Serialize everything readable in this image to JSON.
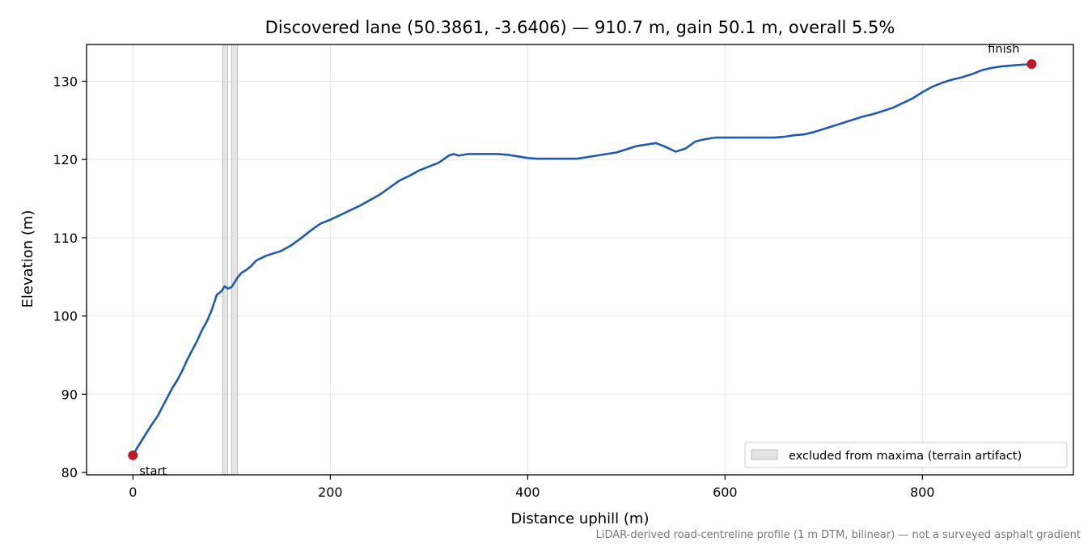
{
  "chart_data": {
    "type": "line",
    "title": "Discovered lane (50.3861, -3.6406) — 910.7 m, gain 50.1 m, overall 5.5%",
    "xlabel": "Distance uphill (m)",
    "ylabel": "Elevation (m)",
    "xlim": [
      -47,
      953
    ],
    "ylim": [
      79.7,
      134.7
    ],
    "xticks": [
      0,
      200,
      400,
      600,
      800
    ],
    "yticks": [
      80,
      90,
      100,
      110,
      120,
      130
    ],
    "grid": true,
    "series": [
      {
        "color": "#1f5bb0",
        "x": [
          0,
          5,
          10,
          15,
          20,
          25,
          30,
          35,
          40,
          45,
          50,
          55,
          60,
          65,
          70,
          75,
          80,
          85,
          90,
          93,
          96,
          100,
          103,
          106,
          110,
          115,
          120,
          125,
          130,
          135,
          140,
          145,
          150,
          160,
          170,
          180,
          190,
          200,
          210,
          220,
          230,
          240,
          250,
          260,
          270,
          280,
          290,
          300,
          310,
          320,
          325,
          330,
          340,
          350,
          360,
          370,
          380,
          390,
          400,
          410,
          420,
          430,
          440,
          450,
          460,
          470,
          480,
          490,
          500,
          510,
          520,
          530,
          540,
          550,
          560,
          570,
          580,
          590,
          600,
          610,
          620,
          630,
          640,
          650,
          660,
          670,
          680,
          690,
          700,
          710,
          720,
          730,
          740,
          750,
          760,
          770,
          780,
          790,
          800,
          810,
          820,
          830,
          840,
          850,
          860,
          870,
          880,
          890,
          900,
          910.7
        ],
        "y": [
          82.2,
          83.3,
          84.3,
          85.3,
          86.3,
          87.2,
          88.4,
          89.6,
          90.8,
          91.8,
          93.0,
          94.4,
          95.6,
          96.8,
          98.2,
          99.3,
          100.8,
          102.7,
          103.2,
          103.8,
          103.5,
          103.7,
          104.3,
          104.9,
          105.5,
          105.9,
          106.4,
          107.1,
          107.4,
          107.7,
          107.9,
          108.1,
          108.3,
          109.0,
          109.9,
          110.9,
          111.8,
          112.3,
          112.9,
          113.5,
          114.1,
          114.8,
          115.5,
          116.4,
          117.3,
          117.9,
          118.6,
          119.1,
          119.6,
          120.5,
          120.7,
          120.5,
          120.7,
          120.7,
          120.7,
          120.7,
          120.6,
          120.4,
          120.2,
          120.1,
          120.1,
          120.1,
          120.1,
          120.1,
          120.3,
          120.5,
          120.7,
          120.9,
          121.3,
          121.7,
          121.9,
          122.1,
          121.6,
          121.0,
          121.4,
          122.3,
          122.6,
          122.8,
          122.8,
          122.8,
          122.8,
          122.8,
          122.8,
          122.8,
          122.9,
          123.1,
          123.2,
          123.5,
          123.9,
          124.3,
          124.7,
          125.1,
          125.5,
          125.8,
          126.2,
          126.6,
          127.2,
          127.8,
          128.6,
          129.3,
          129.8,
          130.2,
          130.5,
          130.9,
          131.4,
          131.7,
          131.9,
          132.0,
          132.1,
          132.2
        ]
      }
    ],
    "excluded_bands": [
      [
        91,
        96
      ],
      [
        100,
        106
      ]
    ],
    "endpoints": [
      {
        "label": "start",
        "x": 0,
        "y": 82.2
      },
      {
        "label": "finish",
        "x": 910.7,
        "y": 132.2
      }
    ],
    "legend": {
      "position": "lower-right",
      "label": "excluded from maxima (terrain artifact)"
    },
    "footnote": "LiDAR-derived road-centreline profile (1 m DTM, bilinear) — not a surveyed asphalt gradient"
  },
  "colors": {
    "line": "#1f5bb0",
    "endpoint": "#c0182a",
    "band_fill": "#e5e5e5",
    "band_stroke": "#bdbdbd",
    "grid": "#e6e6e6"
  }
}
